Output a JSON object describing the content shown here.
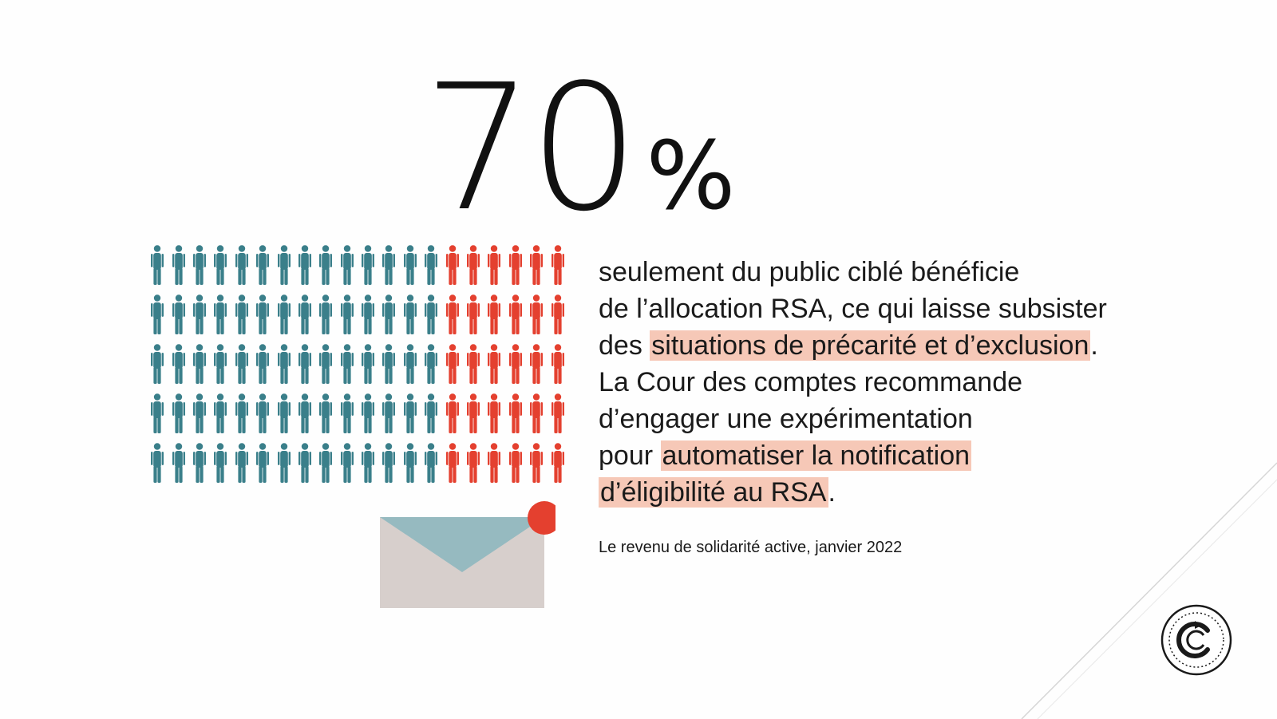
{
  "headline": {
    "value": "70",
    "unit": "%"
  },
  "pictogram": {
    "total": 100,
    "highlighted": 30,
    "base_color": "#3a7f8a",
    "highlight_color": "#e4402f"
  },
  "body": {
    "line1": "seulement du public ciblé bénéficie",
    "line2": "de l’allocation RSA, ce qui laisse subsister",
    "line3_pre": "des ",
    "line3_highlight": "situations de précarité et d’exclusion",
    "line3_post": ".",
    "line4": "La Cour des comptes recommande",
    "line5": "d’engager une expérimentation",
    "line6_pre": "pour ",
    "line6_highlight": "automatiser la notification",
    "line7_highlight": "d’éligibilité au RSA",
    "line7_post": "."
  },
  "source": "Le revenu de solidarité active, janvier 2022",
  "colors": {
    "highlight_background": "#f6c8b7",
    "envelope_body": "#d7cfcc",
    "envelope_flap": "#96bac0",
    "notification_dot": "#e4402f"
  },
  "icons": {
    "people": "person-icon",
    "mail": "envelope-icon",
    "logo": "cour-des-comptes-seal"
  }
}
